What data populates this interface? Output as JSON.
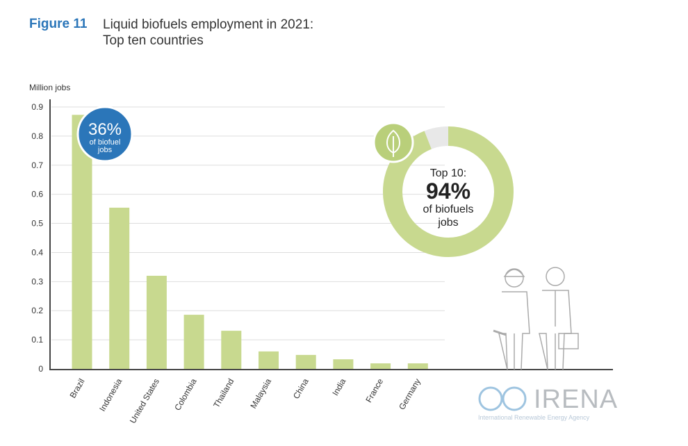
{
  "figure_label": "Figure 11",
  "title_line1": "Liquid biofuels employment in 2021:",
  "title_line2": "Top ten countries",
  "chart_data": {
    "type": "bar",
    "ylabel": "Million jobs",
    "ylim": [
      0,
      0.9
    ],
    "yticks": [
      "0",
      "0.1",
      "0.2",
      "0.3",
      "0.4",
      "0.5",
      "0.6",
      "0.7",
      "0.8",
      "0.9"
    ],
    "grid": true,
    "categories": [
      "Brazil",
      "Indonesia",
      "United States",
      "Colombia",
      "Thailand",
      "Malaysia",
      "China",
      "India",
      "France",
      "Germany"
    ],
    "values": [
      0.873,
      0.554,
      0.32,
      0.186,
      0.131,
      0.06,
      0.048,
      0.033,
      0.019,
      0.019
    ],
    "bar_color": "#c8d98f",
    "annotation": {
      "value": "36%",
      "line1": "of biofuel",
      "line2": "jobs",
      "color": "#2b76b9"
    },
    "donut": {
      "share": 94,
      "color": "#c8d98f",
      "rest_color": "#e8e8e8",
      "label_top": "Top 10:",
      "label_value": "94%",
      "label_line1": "of biofuels",
      "label_line2": "jobs",
      "icon": "leaf-icon"
    }
  },
  "logo": {
    "name": "IRENA",
    "subtitle": "International Renewable Energy Agency"
  }
}
